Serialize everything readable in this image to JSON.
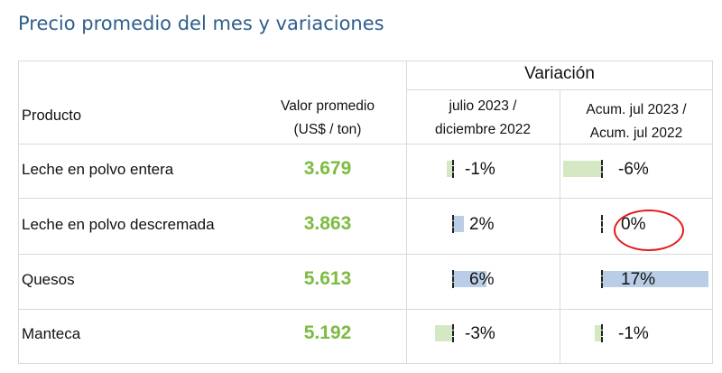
{
  "title": "Precio promedio del mes y variaciones",
  "table": {
    "variation_header": "Variación",
    "headers": {
      "producto": "Producto",
      "valor_line1": "Valor promedio",
      "valor_line2": "(US$ / ton)",
      "col_a_line1": "julio 2023 /",
      "col_a_line2": "diciembre 2022",
      "col_b_line1": "Acum. jul 2023 /",
      "col_b_line2": "Acum. jul 2022"
    },
    "rows": [
      {
        "product": "Leche en polvo entera",
        "value": "3.679",
        "var_a": "-1%",
        "var_b": "-6%",
        "var_a_num": -1,
        "var_b_num": -6
      },
      {
        "product": "Leche en polvo descremada",
        "value": "3.863",
        "var_a": "2%",
        "var_b": "0%",
        "var_a_num": 2,
        "var_b_num": 0
      },
      {
        "product": "Quesos",
        "value": "5.613",
        "var_a": "6%",
        "var_b": "17%",
        "var_a_num": 6,
        "var_b_num": 17
      },
      {
        "product": "Manteca",
        "value": "5.192",
        "var_a": "-3%",
        "var_b": "-1%",
        "var_a_num": -3,
        "var_b_num": -1
      }
    ],
    "colors": {
      "value_text": "#7dbb42",
      "negative_bar": "#d5e8c4",
      "positive_bar": "#b9cde6",
      "highlight_circle": "#e11b1b"
    }
  }
}
